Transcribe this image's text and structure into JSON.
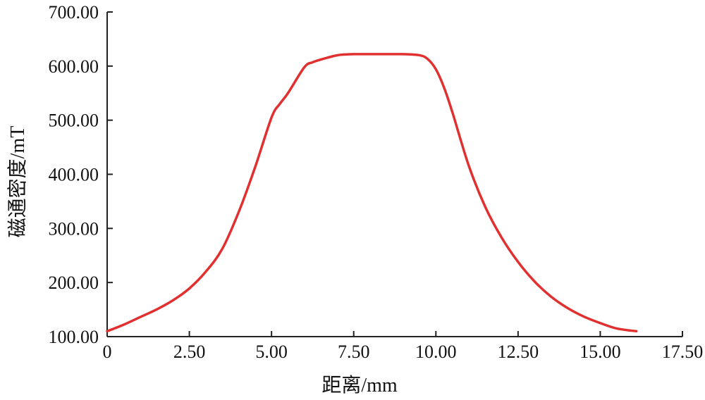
{
  "chart_data": {
    "type": "line",
    "title": "",
    "xlabel": "距离/mm",
    "ylabel": "磁通密度/mT",
    "xlim": [
      0,
      17.5
    ],
    "ylim": [
      100,
      700
    ],
    "xticks": [
      "0",
      "2.50",
      "5.00",
      "7.50",
      "10.00",
      "12.50",
      "15.00",
      "17.50"
    ],
    "yticks": [
      "100.00",
      "200.00",
      "300.00",
      "400.00",
      "500.00",
      "600.00",
      "700.00"
    ],
    "grid": false,
    "legend": "none",
    "series": [
      {
        "color": "#e03030",
        "x": [
          0,
          0.5,
          1.0,
          1.5,
          2.0,
          2.5,
          3.0,
          3.5,
          4.0,
          4.5,
          5.0,
          5.25,
          5.5,
          6.0,
          6.25,
          6.5,
          7.0,
          7.5,
          8.0,
          8.5,
          9.0,
          9.5,
          9.75,
          10.0,
          10.25,
          10.5,
          11.0,
          11.5,
          12.0,
          12.5,
          13.0,
          13.5,
          14.0,
          14.5,
          15.0,
          15.5,
          16.1
        ],
        "y": [
          110,
          122,
          136,
          150,
          167,
          189,
          220,
          262,
          330,
          413,
          505,
          530,
          550,
          598,
          607,
          612,
          620,
          622,
          622,
          622,
          622,
          620,
          613,
          594,
          560,
          515,
          416,
          340,
          283,
          238,
          202,
          174,
          153,
          137,
          125,
          115,
          110
        ]
      }
    ]
  }
}
